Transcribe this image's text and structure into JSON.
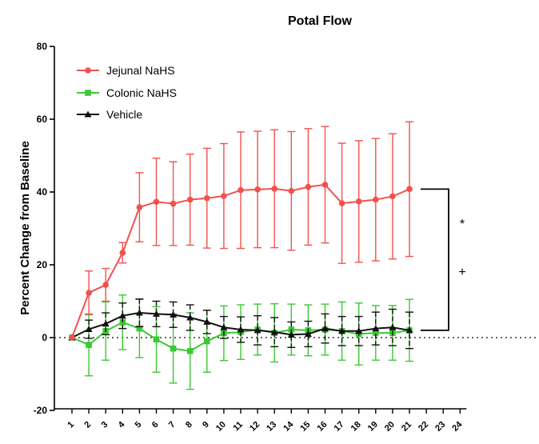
{
  "chart_data": {
    "type": "line",
    "title": "Potal Flow",
    "ylabel": "Percent  Change from  Baseline",
    "xlabel": "",
    "ylim": [
      -20,
      80
    ],
    "yticks": [
      "-20",
      "0",
      "20",
      "40",
      "60",
      "80"
    ],
    "xlim": [
      1,
      24
    ],
    "xticks": [
      "1",
      "2",
      "3",
      "4",
      "5",
      "6",
      "7",
      "8",
      "9",
      "10",
      "11",
      "12",
      "13",
      "14",
      "15",
      "16",
      "17",
      "18",
      "19",
      "20",
      "21",
      "22",
      "23",
      "24"
    ],
    "legend_position": "top-left",
    "baseline_dotted": true,
    "series": [
      {
        "name": "Jejunal NaHS",
        "color": "#f0524f",
        "marker": "circle",
        "x": [
          1,
          2,
          3,
          4,
          5,
          6,
          7,
          8,
          9,
          10,
          11,
          12,
          13,
          14,
          15,
          16,
          17,
          18,
          19,
          20,
          21
        ],
        "values": [
          0,
          12.3,
          14.5,
          23.3,
          35.8,
          37.3,
          36.8,
          37.9,
          38.3,
          38.9,
          40.5,
          40.7,
          40.9,
          40.3,
          41.4,
          42.0,
          36.9,
          37.4,
          37.9,
          38.8,
          40.8
        ],
        "err": [
          0,
          6,
          4.5,
          2.8,
          9.5,
          12,
          11.5,
          12.5,
          13.7,
          14.4,
          16,
          16,
          16.2,
          16.3,
          16,
          16,
          16.5,
          16.7,
          16.8,
          17.2,
          18.5
        ]
      },
      {
        "name": "Colonic NaHS",
        "color": "#3cc832",
        "marker": "square",
        "x": [
          1,
          2,
          3,
          4,
          5,
          6,
          7,
          8,
          9,
          10,
          11,
          12,
          13,
          14,
          15,
          16,
          17,
          18,
          19,
          20,
          21
        ],
        "values": [
          0,
          -2,
          1.8,
          4.2,
          2.5,
          -0.5,
          -3,
          -3.7,
          -1,
          1.2,
          1.5,
          2.2,
          1.3,
          2.2,
          2.0,
          2.2,
          1.8,
          1.0,
          1.3,
          1.3,
          2.0
        ],
        "err": [
          0,
          8.5,
          8,
          7.5,
          8,
          9,
          9.5,
          10.5,
          8.5,
          7.5,
          7.5,
          7,
          8,
          7,
          7,
          7,
          8,
          8.5,
          7.5,
          7.5,
          8.5
        ]
      },
      {
        "name": "Vehicle",
        "color": "#111111",
        "marker": "triangle",
        "x": [
          1,
          2,
          3,
          4,
          5,
          6,
          7,
          8,
          9,
          10,
          11,
          12,
          13,
          14,
          15,
          16,
          17,
          18,
          19,
          20,
          21
        ],
        "values": [
          0,
          2.3,
          3.8,
          6.0,
          6.8,
          6.5,
          6.3,
          5.5,
          4.3,
          2.8,
          2.2,
          2.0,
          1.5,
          0.8,
          1.0,
          2.5,
          1.8,
          1.8,
          2.5,
          2.8,
          2.0
        ],
        "err": [
          0,
          2.5,
          3,
          3.5,
          3.8,
          3.5,
          3.5,
          3.5,
          3.2,
          3,
          3.5,
          4,
          4,
          3.5,
          3.5,
          4,
          4,
          4,
          4.5,
          5,
          5
        ]
      }
    ],
    "annotations": [
      "*",
      "+"
    ]
  }
}
